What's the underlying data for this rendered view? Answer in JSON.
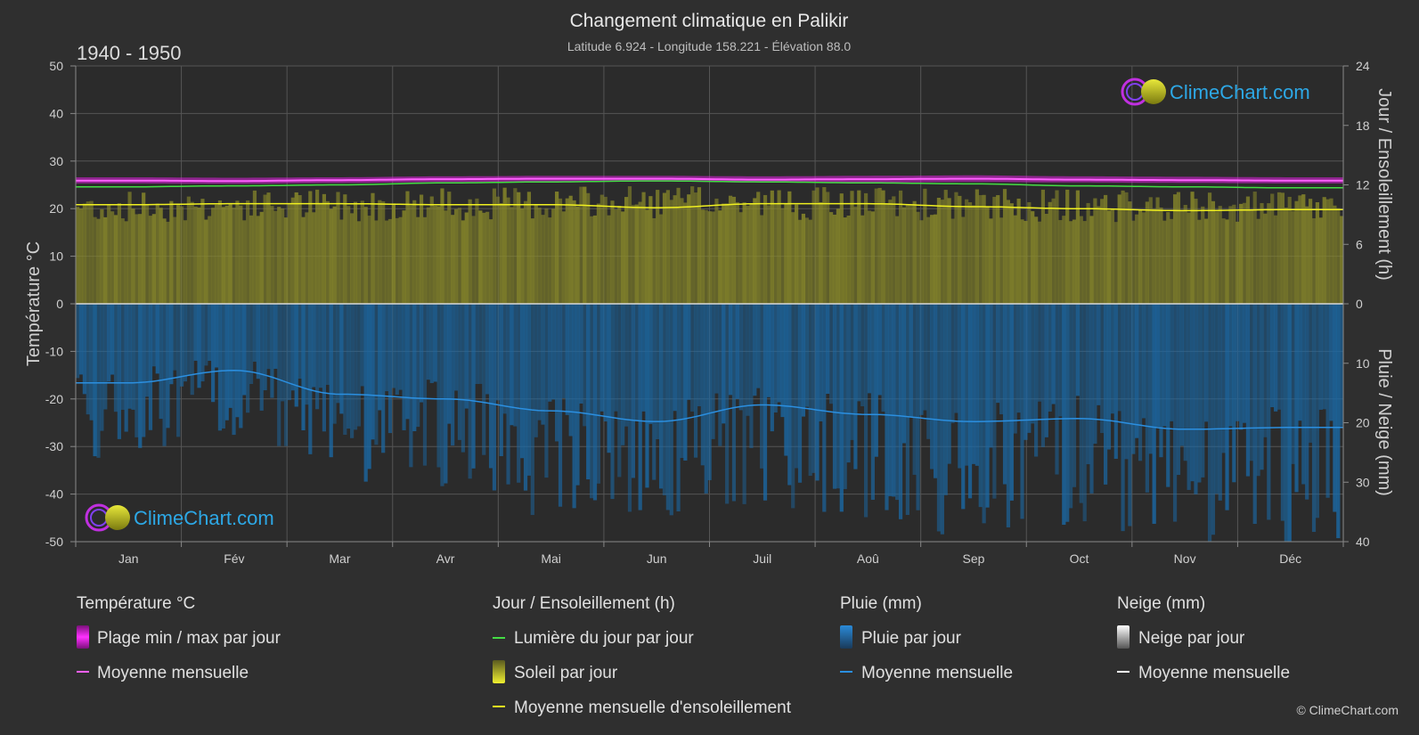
{
  "header": {
    "title": "Changement climatique en Palikir",
    "subtitle": "Latitude 6.924 - Longitude 158.221 - Élévation 88.0",
    "period": "1940 - 1950"
  },
  "brand": {
    "logo_text": "ClimeChart.com",
    "copyright": "© ClimeChart.com"
  },
  "colors": {
    "background": "#2f2f2f",
    "temp_range": "#e020e0",
    "temp_mean": "#ff60ff",
    "daylight": "#44dd44",
    "sunshine_fill": "#9a9a2a",
    "sunshine_mean": "#f0f020",
    "rain": "#1a6aa8",
    "rain_mean": "#2b8fe0",
    "snow_mean": "#ffffff",
    "logo_blue": "#2da8e6"
  },
  "chart_data": {
    "type": "area",
    "months": [
      "Jan",
      "Fév",
      "Mar",
      "Avr",
      "Mai",
      "Jun",
      "Juil",
      "Aoû",
      "Sep",
      "Oct",
      "Nov",
      "Déc"
    ],
    "left_axis": {
      "label": "Température °C",
      "ylim": [
        -50,
        50
      ],
      "ticks": [
        50,
        40,
        30,
        20,
        10,
        0,
        -10,
        -20,
        -30,
        -40,
        -50
      ]
    },
    "right_axis_top": {
      "label": "Jour / Ensoleillement (h)",
      "ylim": [
        0,
        24
      ],
      "ticks": [
        24,
        18,
        12,
        6,
        0
      ]
    },
    "right_axis_bottom": {
      "label": "Pluie / Neige (mm)",
      "ylim": [
        0,
        40
      ],
      "ticks": [
        10,
        20,
        30,
        40
      ]
    },
    "grid": true,
    "series": [
      {
        "name": "Plage min / max par jour",
        "kind": "temp_range",
        "min": [
          25.3,
          25.2,
          25.4,
          25.6,
          25.7,
          25.7,
          25.5,
          25.5,
          25.6,
          25.5,
          25.4,
          25.3
        ],
        "max": [
          26.6,
          26.5,
          26.6,
          26.8,
          26.9,
          26.9,
          26.8,
          26.9,
          27.0,
          26.8,
          26.7,
          26.6
        ]
      },
      {
        "name": "Moyenne mensuelle",
        "kind": "temp_mean",
        "values": [
          25.9,
          25.8,
          26.0,
          26.2,
          26.3,
          26.3,
          26.1,
          26.2,
          26.3,
          26.1,
          26.0,
          25.9
        ]
      },
      {
        "name": "Lumière du jour par jour",
        "kind": "daylight_hours",
        "values": [
          11.8,
          11.9,
          12.0,
          12.2,
          12.3,
          12.4,
          12.3,
          12.2,
          12.1,
          11.9,
          11.8,
          11.7
        ]
      },
      {
        "name": "Soleil par jour",
        "kind": "sunshine_hours",
        "values": [
          10.9,
          11.0,
          11.1,
          11.2,
          11.3,
          11.4,
          11.3,
          11.2,
          11.1,
          11.0,
          10.8,
          10.8
        ]
      },
      {
        "name": "Moyenne mensuelle d'ensoleillement",
        "kind": "sunshine_mean",
        "values": [
          10.0,
          10.1,
          10.1,
          10.0,
          10.0,
          9.7,
          10.1,
          10.1,
          9.8,
          9.6,
          9.4,
          9.5
        ]
      },
      {
        "name": "Pluie par jour",
        "kind": "rain_daily",
        "values": [
          13.3,
          11.2,
          15.2,
          16.0,
          18.0,
          19.8,
          17.0,
          18.6,
          19.8,
          19.3,
          21.1,
          20.8
        ]
      },
      {
        "name": "Moyenne mensuelle",
        "kind": "rain_mean",
        "values": [
          13.3,
          11.2,
          15.2,
          16.0,
          18.0,
          19.8,
          17.0,
          18.6,
          19.8,
          19.3,
          21.1,
          20.8
        ]
      },
      {
        "name": "Neige par jour",
        "kind": "snow_daily",
        "values": [
          0,
          0,
          0,
          0,
          0,
          0,
          0,
          0,
          0,
          0,
          0,
          0
        ]
      },
      {
        "name": "Moyenne mensuelle",
        "kind": "snow_mean",
        "values": [
          0,
          0,
          0,
          0,
          0,
          0,
          0,
          0,
          0,
          0,
          0,
          0
        ]
      }
    ]
  },
  "legend": {
    "temperature": {
      "heading": "Température °C",
      "range": "Plage min / max par jour",
      "mean": "Moyenne mensuelle"
    },
    "sun": {
      "heading": "Jour / Ensoleillement (h)",
      "daylight": "Lumière du jour par jour",
      "sunshine": "Soleil par jour",
      "sun_mean": "Moyenne mensuelle d'ensoleillement"
    },
    "rain": {
      "heading": "Pluie (mm)",
      "daily": "Pluie par jour",
      "mean": "Moyenne mensuelle"
    },
    "snow": {
      "heading": "Neige (mm)",
      "daily": "Neige par jour",
      "mean": "Moyenne mensuelle"
    }
  }
}
